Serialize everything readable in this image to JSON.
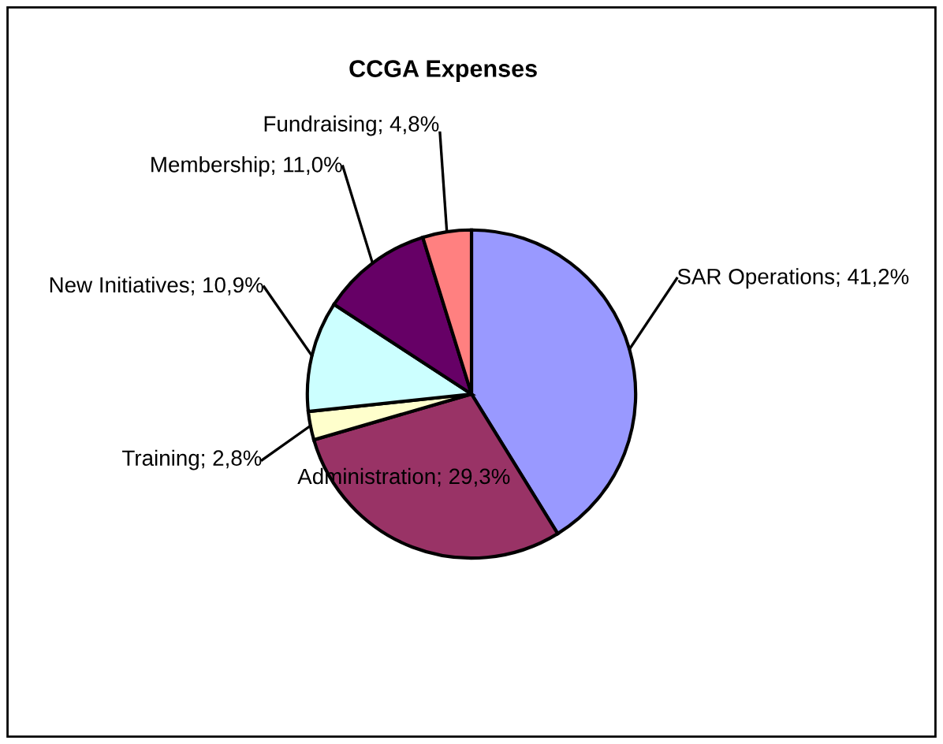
{
  "chart_data": {
    "type": "pie",
    "title": "CCGA Expenses",
    "categories": [
      "SAR Operations",
      "Administration",
      "Training",
      "New Initiatives",
      "Membership",
      "Fundraising"
    ],
    "values": [
      41.2,
      29.3,
      2.8,
      10.9,
      11.0,
      4.8
    ],
    "value_labels": [
      "41,2%",
      "29,3%",
      "2,8%",
      "10,9%",
      "11,0%",
      "4,8%"
    ],
    "colors": [
      "#9999ff",
      "#993366",
      "#ffffcc",
      "#ccffff",
      "#660066",
      "#ff8080"
    ],
    "legend": false
  }
}
